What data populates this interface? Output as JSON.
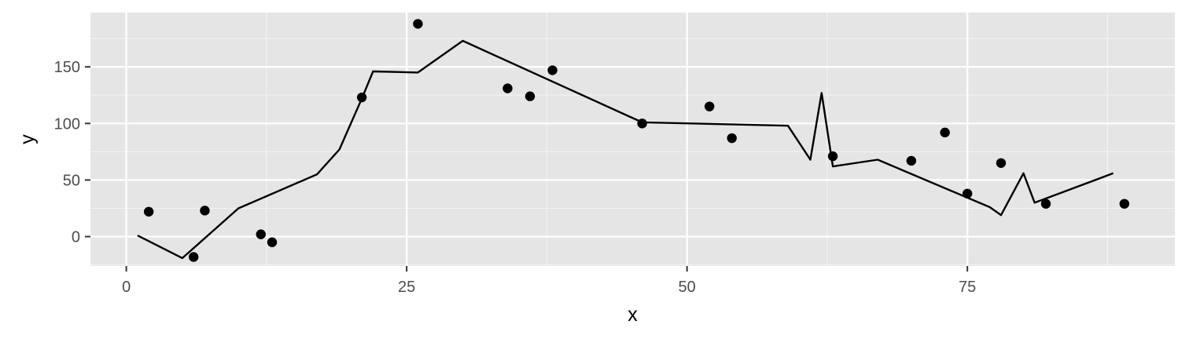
{
  "chart_data": {
    "type": "scatter",
    "xlabel": "x",
    "ylabel": "y",
    "xlim": [
      -3.2,
      93.5
    ],
    "ylim": [
      -26,
      198
    ],
    "x_ticks": [
      0,
      25,
      50,
      75
    ],
    "x_tick_labels": [
      "0",
      "25",
      "50",
      "75"
    ],
    "y_ticks": [
      0,
      50,
      100,
      150
    ],
    "y_tick_labels": [
      "0",
      "50",
      "100",
      "150"
    ],
    "grid": true,
    "legend": "none",
    "series": [
      {
        "kind": "points",
        "x": [
          2,
          6,
          7,
          12,
          13,
          21,
          26,
          34,
          36,
          38,
          46,
          52,
          54,
          63,
          70,
          73,
          75,
          78,
          82,
          89
        ],
        "y": [
          22,
          -18,
          23,
          2,
          -5,
          123,
          188,
          131,
          124,
          147,
          100,
          115,
          87,
          71,
          67,
          92,
          38,
          65,
          29,
          29
        ]
      },
      {
        "kind": "line",
        "x": [
          1,
          5,
          10,
          17,
          19,
          21,
          22,
          26,
          30,
          46,
          59,
          61,
          62,
          63,
          67,
          77,
          78,
          80,
          81,
          88
        ],
        "y": [
          1,
          -19,
          25,
          55,
          77,
          122,
          146,
          145,
          173,
          101,
          98,
          68,
          127,
          62,
          68,
          26,
          19,
          56,
          30,
          56
        ]
      }
    ],
    "colors": {
      "panel_background": "#e5e5e5",
      "grid_major": "#ffffff",
      "grid_minor": "#f2f2f2",
      "data": "#000000",
      "tick": "#333333"
    }
  }
}
